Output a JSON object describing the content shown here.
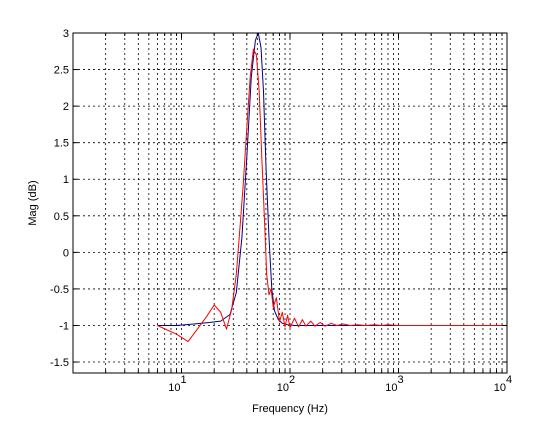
{
  "chart_data": {
    "type": "line",
    "xscale": "log",
    "xlim": [
      1,
      10000
    ],
    "ylim": [
      -1.65,
      3
    ],
    "grid": true,
    "grid_style": "dashed",
    "xlabel": "Frequency (Hz)",
    "ylabel": "Mag (dB)",
    "yticks": [
      -1.5,
      -1,
      -0.5,
      0,
      0.5,
      1,
      1.5,
      2,
      2.5,
      3
    ],
    "ytick_labels": [
      "-1.5",
      "-1",
      "-0.5",
      "0",
      "0.5",
      "1",
      "1.5",
      "2",
      "2.5",
      "3"
    ],
    "xticks": [
      10,
      100,
      1000,
      10000
    ],
    "xtick_labels": [
      {
        "base": "10",
        "exp": "1"
      },
      {
        "base": "10",
        "exp": "2"
      },
      {
        "base": "10",
        "exp": "3"
      },
      {
        "base": "10",
        "exp": "4"
      }
    ],
    "series": [
      {
        "color": "#000080",
        "x": [
          6,
          9,
          13,
          18,
          23,
          28,
          32,
          36,
          40,
          44,
          48,
          51,
          54,
          57,
          60,
          64,
          68,
          72,
          78,
          85,
          95,
          110,
          130,
          160,
          200,
          300,
          500,
          1000,
          2000,
          5000,
          10000
        ],
        "y": [
          -1,
          -1,
          -0.98,
          -0.96,
          -0.94,
          -0.85,
          -0.55,
          0.2,
          1.3,
          2.4,
          2.9,
          3.0,
          2.8,
          2.2,
          1.2,
          0.2,
          -0.5,
          -0.8,
          -0.92,
          -0.97,
          -0.99,
          -1,
          -1,
          -1,
          -1,
          -1,
          -1,
          -1,
          -1,
          -1,
          -1
        ]
      },
      {
        "color": "#ff0000",
        "x": [
          6,
          9,
          11.5,
          14,
          17,
          20,
          23,
          26,
          29,
          32,
          34,
          37,
          40,
          43,
          46,
          49,
          52,
          55,
          58,
          61,
          64,
          67,
          70,
          75,
          80,
          85,
          90,
          95,
          100,
          110,
          120,
          130,
          140,
          155,
          170,
          190,
          210,
          240,
          270,
          310,
          360,
          420,
          500,
          600,
          700,
          800,
          1000,
          1300,
          1600,
          2000,
          3000,
          5000,
          10000
        ],
        "y": [
          -1,
          -1.12,
          -1.22,
          -1.05,
          -0.88,
          -0.72,
          -0.82,
          -1.05,
          -0.78,
          -0.3,
          0.2,
          0.9,
          1.7,
          2.4,
          2.78,
          2.7,
          2.2,
          1.3,
          0.5,
          -0.3,
          -0.58,
          -0.5,
          -0.75,
          -0.62,
          -0.95,
          -0.82,
          -1.02,
          -0.86,
          -1.03,
          -0.9,
          -1.02,
          -0.92,
          -1.01,
          -0.94,
          -1.01,
          -0.96,
          -1.01,
          -0.97,
          -1.0,
          -0.98,
          -1.0,
          -0.99,
          -1.0,
          -0.99,
          -1.0,
          -0.99,
          -1.0,
          -1.0,
          -1.0,
          -1.0,
          -1.0,
          -1.0,
          -1.0
        ]
      }
    ]
  }
}
